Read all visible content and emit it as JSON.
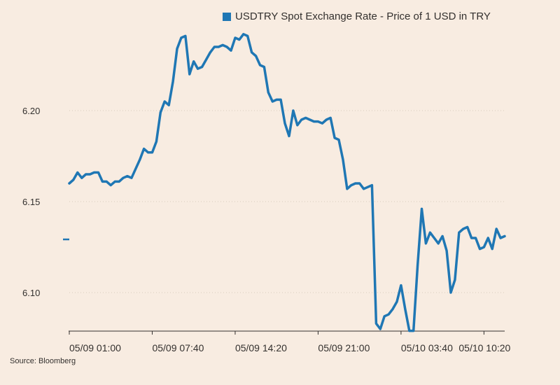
{
  "chart_data": {
    "type": "line",
    "title": "",
    "xlabel": "",
    "ylabel": "",
    "ylim": [
      6.078,
      6.248
    ],
    "y_ticks": [
      6.1,
      6.15,
      6.2
    ],
    "y_tick_labels": [
      "6.10",
      "6.15",
      "6.20"
    ],
    "x_tick_labels": [
      "05/09 01:00",
      "05/09 07:40",
      "05/09 14:20",
      "05/09 21:00",
      "05/10 03:40",
      "05/10 10:20"
    ],
    "x_tick_index": [
      0,
      20,
      40,
      60,
      80,
      100
    ],
    "grid": "horizontal dotted",
    "legend_position": "top",
    "color": "#1f77b4",
    "series": [
      {
        "name": "USDTRY Spot Exchange Rate - Price of 1 USD in TRY",
        "values": [
          6.16,
          6.162,
          6.166,
          6.163,
          6.165,
          6.165,
          6.166,
          6.166,
          6.161,
          6.161,
          6.159,
          6.161,
          6.161,
          6.163,
          6.164,
          6.163,
          6.168,
          6.173,
          6.179,
          6.177,
          6.177,
          6.183,
          6.199,
          6.205,
          6.203,
          6.216,
          6.234,
          6.24,
          6.241,
          6.22,
          6.227,
          6.223,
          6.224,
          6.228,
          6.232,
          6.235,
          6.235,
          6.236,
          6.235,
          6.233,
          6.24,
          6.239,
          6.242,
          6.241,
          6.232,
          6.23,
          6.225,
          6.224,
          6.21,
          6.205,
          6.206,
          6.206,
          6.193,
          6.186,
          6.2,
          6.192,
          6.195,
          6.196,
          6.195,
          6.194,
          6.194,
          6.193,
          6.195,
          6.196,
          6.185,
          6.184,
          6.173,
          6.157,
          6.159,
          6.16,
          6.16,
          6.157,
          6.158,
          6.159,
          6.083,
          6.08,
          6.087,
          6.088,
          6.091,
          6.095,
          6.104,
          6.091,
          6.079,
          6.079,
          6.115,
          6.146,
          6.127,
          6.133,
          6.13,
          6.127,
          6.131,
          6.123,
          6.1,
          6.107,
          6.133,
          6.135,
          6.136,
          6.13,
          6.13,
          6.124,
          6.125,
          6.13,
          6.124,
          6.135,
          6.13,
          6.131
        ]
      }
    ]
  },
  "source": "Source: Bloomberg"
}
